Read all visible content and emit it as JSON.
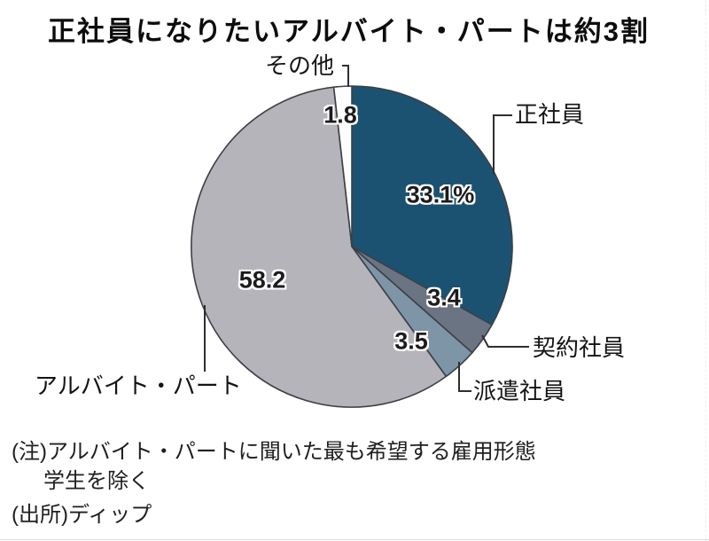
{
  "title": "正社員になりたいアルバイト・パートは約3割",
  "chart_data": {
    "type": "pie",
    "title": "正社員になりたいアルバイト・パートは約3割",
    "unit": "%",
    "start_angle_deg": 0,
    "direction": "clockwise",
    "slices": [
      {
        "label": "正社員",
        "value": 33.1,
        "display_value": "33.1%",
        "color": "#1b5271"
      },
      {
        "label": "契約社員",
        "value": 3.4,
        "display_value": "3.4",
        "color": "#6a7482"
      },
      {
        "label": "派遣社員",
        "value": 3.5,
        "display_value": "3.5",
        "color": "#7e95a7"
      },
      {
        "label": "アルバイト・パート",
        "value": 58.2,
        "display_value": "58.2",
        "color": "#b5b4ba"
      },
      {
        "label": "その他",
        "value": 1.8,
        "display_value": "1.8",
        "color": "#fdfdfd"
      }
    ],
    "outline_color": "#3b4047",
    "leader_line_color": "#2f2f2f"
  },
  "notes": {
    "note_line1": "(注)アルバイト・パートに聞いた最も希望する雇用形態",
    "note_line2": "学生を除く",
    "source": "(出所)ディップ"
  }
}
